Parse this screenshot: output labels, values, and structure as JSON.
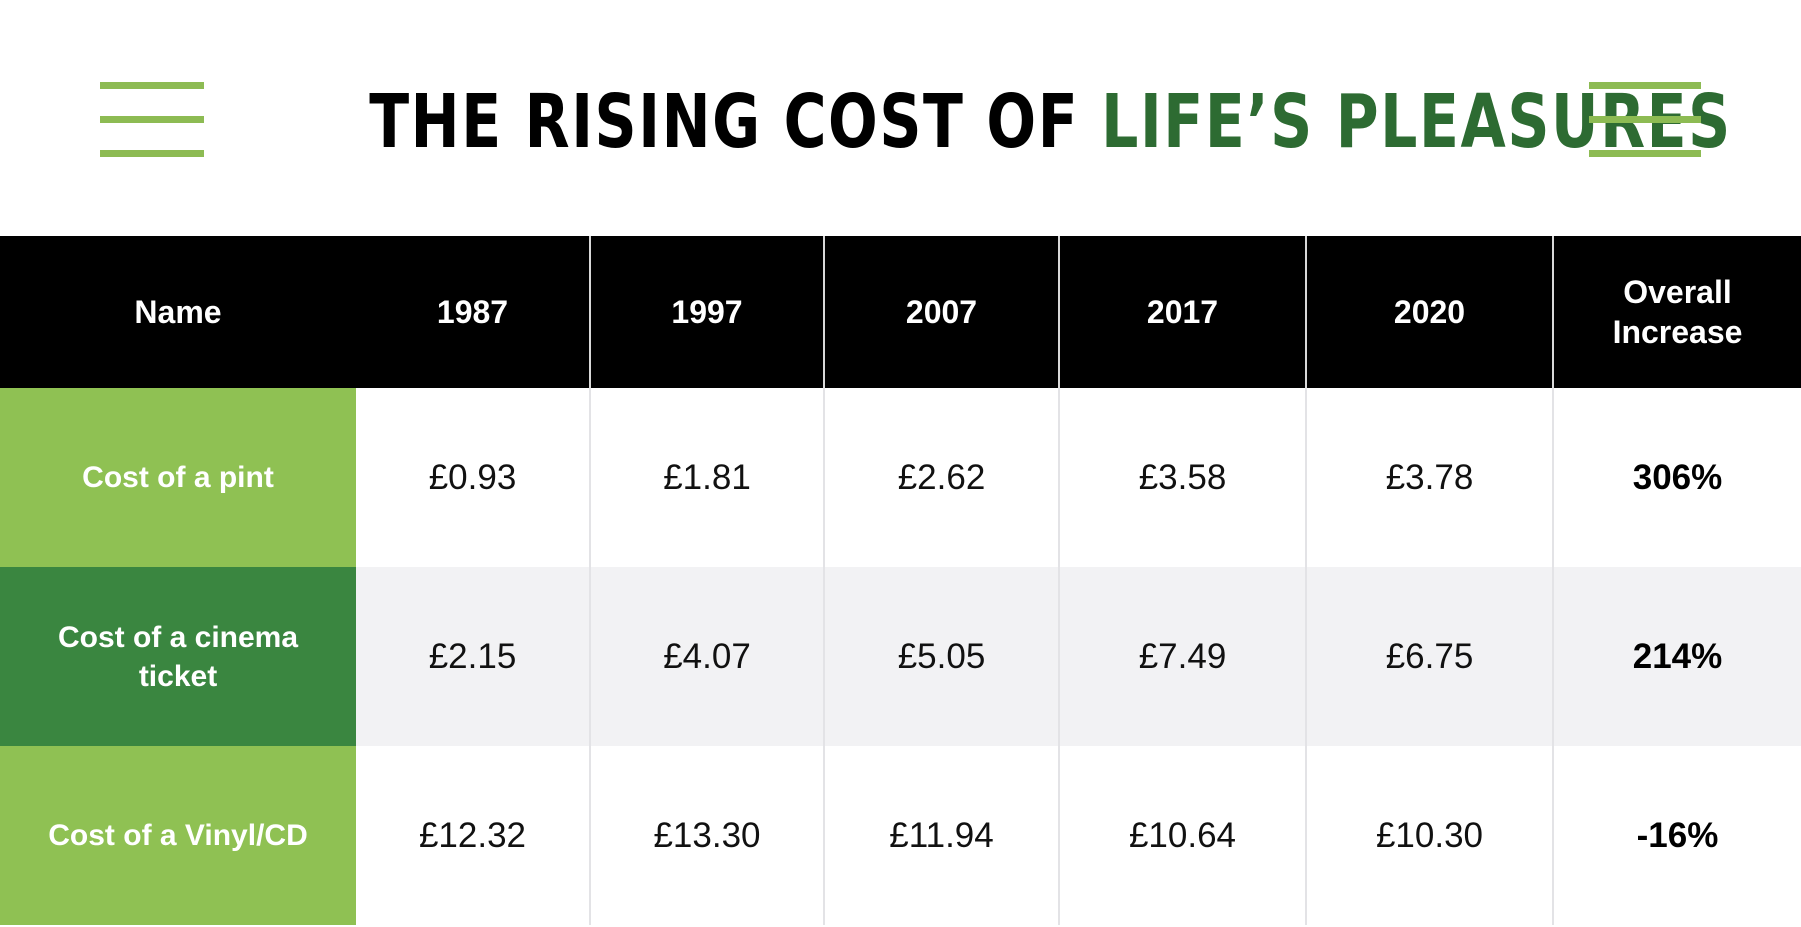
{
  "title": {
    "part1": "THE RISING COST OF",
    "part2": "LIFE’S PLEASURES"
  },
  "colors": {
    "title_dark": "#000000",
    "title_accent": "#2d6b32",
    "accent_light": "#8dbb53",
    "row_light_green": "#8fc153",
    "row_dark_green": "#3a8640",
    "header_bg": "#000000",
    "alt_row_bg": "#f2f2f4"
  },
  "chart_data": {
    "type": "table",
    "columns": [
      "Name",
      "1987",
      "1997",
      "2007",
      "2017",
      "2020",
      "Overall Increase"
    ],
    "rows": [
      {
        "name": "Cost of a pint",
        "values": [
          "£0.93",
          "£1.81",
          "£2.62",
          "£3.58",
          "£3.78"
        ],
        "overall": "306%"
      },
      {
        "name": "Cost of a cinema ticket",
        "values": [
          "£2.15",
          "£4.07",
          "£5.05",
          "£7.49",
          "£6.75"
        ],
        "overall": "214%"
      },
      {
        "name": "Cost of a Vinyl/CD",
        "values": [
          "£12.32",
          "£13.30",
          "£11.94",
          "£10.64",
          "£10.30"
        ],
        "overall": "-16%"
      }
    ]
  }
}
